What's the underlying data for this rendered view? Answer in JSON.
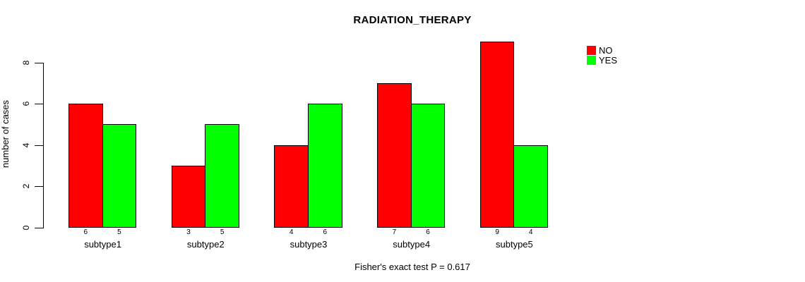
{
  "chart_data": {
    "type": "bar",
    "title": "RADIATION_THERAPY",
    "categories": [
      "subtype1",
      "subtype2",
      "subtype3",
      "subtype4",
      "subtype5"
    ],
    "series": [
      {
        "name": "NO",
        "color": "#ff0000",
        "values": [
          6,
          3,
          4,
          7,
          9
        ]
      },
      {
        "name": "YES",
        "color": "#00ff00",
        "values": [
          5,
          5,
          6,
          6,
          4
        ]
      }
    ],
    "xlabel": "",
    "ylabel": "number of cases",
    "ylim": [
      0,
      9
    ],
    "yticks": [
      0,
      2,
      4,
      6,
      8
    ],
    "grid": false,
    "bar_value_labels_shown": true,
    "legend_position": "top-right",
    "bar_border_color": "#000000",
    "annotation": "Fisher's exact test P = 0.617"
  }
}
